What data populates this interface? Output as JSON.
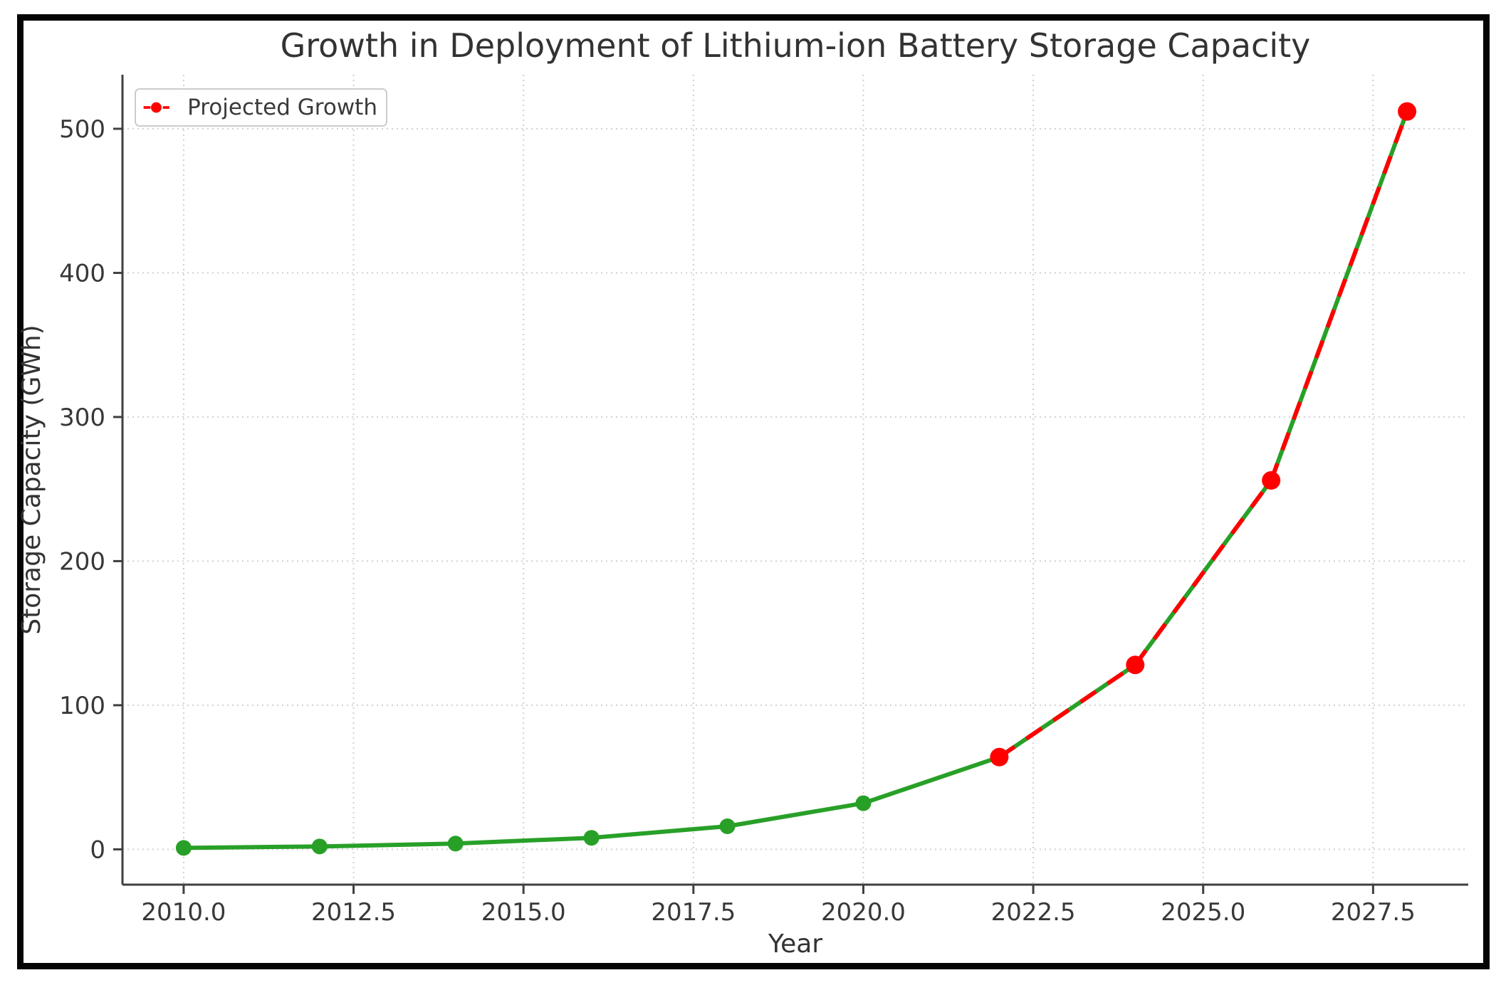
{
  "chart_data": {
    "type": "line",
    "title": "Growth in Deployment of Lithium-ion Battery Storage Capacity",
    "xlabel": "Year",
    "ylabel": "Storage Capacity (GWh)",
    "xlim": [
      2009.1,
      2028.9
    ],
    "ylim": [
      -24.5,
      537.5
    ],
    "grid": true,
    "x_ticks": [
      {
        "value": 2010.0,
        "label": "2010.0"
      },
      {
        "value": 2012.5,
        "label": "2012.5"
      },
      {
        "value": 2015.0,
        "label": "2015.0"
      },
      {
        "value": 2017.5,
        "label": "2017.5"
      },
      {
        "value": 2020.0,
        "label": "2020.0"
      },
      {
        "value": 2022.5,
        "label": "2022.5"
      },
      {
        "value": 2025.0,
        "label": "2025.0"
      },
      {
        "value": 2027.5,
        "label": "2027.5"
      }
    ],
    "y_ticks": [
      {
        "value": 0,
        "label": "0"
      },
      {
        "value": 100,
        "label": "100"
      },
      {
        "value": 200,
        "label": "200"
      },
      {
        "value": 300,
        "label": "300"
      },
      {
        "value": 400,
        "label": "400"
      },
      {
        "value": 500,
        "label": "500"
      }
    ],
    "series": [
      {
        "id": "historical",
        "legend_label": null,
        "color": "#28a028",
        "line_style": "solid",
        "marker": "circle",
        "marker_radius": 11,
        "x": [
          2010,
          2012,
          2014,
          2016,
          2018,
          2020,
          2022,
          2024,
          2026,
          2028
        ],
        "y": [
          1,
          2,
          4,
          8,
          16,
          32,
          64,
          128,
          256,
          512
        ]
      },
      {
        "id": "projected",
        "legend_label": "Projected Growth",
        "color": "#ff0000",
        "line_style": "dashed",
        "marker": "circle",
        "marker_radius": 13,
        "x": [
          2022,
          2024,
          2026,
          2028
        ],
        "y": [
          64,
          128,
          256,
          512
        ]
      }
    ],
    "legend": {
      "position": "upper-left",
      "items": [
        {
          "label": "Projected Growth",
          "color": "#ff0000",
          "style": "dashed-with-marker"
        }
      ]
    }
  },
  "colors": {
    "frame_border": "#050505",
    "background": "#ffffff",
    "gridline": "#d0d0d0",
    "spine": "#3f3f3f",
    "text": "#333333",
    "historical_series": "#28a028",
    "projected_series": "#ff0000"
  }
}
